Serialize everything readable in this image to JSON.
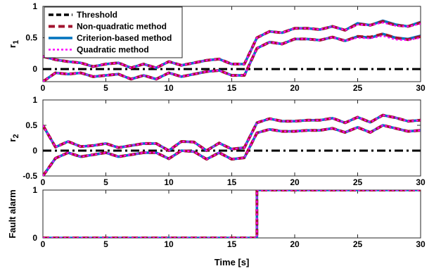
{
  "colors": {
    "threshold": "#000000",
    "non_quadratic": "#a2142f",
    "criterion": "#0072bd",
    "quadratic": "#ff00ff"
  },
  "legend": {
    "placement": "top-left",
    "entries": [
      "Threshold",
      "Non-quadratic method",
      "Criterion-based method",
      "Quadratic method"
    ]
  },
  "chart_data": [
    {
      "type": "line",
      "ylabel": "r",
      "ylabel_sub": "1",
      "xlim": [
        0,
        30
      ],
      "ylim": [
        -0.2,
        1
      ],
      "xticks": [
        0,
        5,
        10,
        15,
        20,
        25,
        30
      ],
      "yticks": [
        0,
        0.5,
        1
      ],
      "ytick_labels": [
        "0",
        "0.5",
        "1"
      ],
      "threshold": 0,
      "series": [
        {
          "name": "Non-quadratic method",
          "style": "upper",
          "x": [
            0,
            1,
            2,
            3,
            4,
            5,
            6,
            7,
            8,
            9,
            10,
            11,
            12,
            13,
            14,
            15,
            16,
            17,
            18,
            19,
            20,
            21,
            22,
            23,
            24,
            25,
            26,
            27,
            28,
            29,
            30
          ],
          "y": [
            0.2,
            0.15,
            0.12,
            0.1,
            0.04,
            0.08,
            0.1,
            0.02,
            0.08,
            0.02,
            0.12,
            0.06,
            0.1,
            0.14,
            0.16,
            0.08,
            0.08,
            0.5,
            0.6,
            0.58,
            0.65,
            0.65,
            0.63,
            0.68,
            0.62,
            0.72,
            0.7,
            0.76,
            0.7,
            0.68,
            0.74
          ]
        },
        {
          "name": "Criterion-based method",
          "style": "upper",
          "x": [
            0,
            1,
            2,
            3,
            4,
            5,
            6,
            7,
            8,
            9,
            10,
            11,
            12,
            13,
            14,
            15,
            16,
            17,
            18,
            19,
            20,
            21,
            22,
            23,
            24,
            25,
            26,
            27,
            28,
            29,
            30
          ],
          "y": [
            0.2,
            0.15,
            0.12,
            0.1,
            0.04,
            0.08,
            0.1,
            0.02,
            0.08,
            0.02,
            0.12,
            0.06,
            0.1,
            0.14,
            0.16,
            0.08,
            0.08,
            0.5,
            0.6,
            0.58,
            0.65,
            0.65,
            0.63,
            0.68,
            0.62,
            0.73,
            0.7,
            0.77,
            0.71,
            0.68,
            0.75
          ]
        },
        {
          "name": "Quadratic method",
          "style": "upper",
          "x": [
            0,
            1,
            2,
            3,
            4,
            5,
            6,
            7,
            8,
            9,
            10,
            11,
            12,
            13,
            14,
            15,
            16,
            17,
            18,
            19,
            20,
            21,
            22,
            23,
            24,
            25,
            26,
            27,
            28,
            29,
            30
          ],
          "y": [
            0.2,
            0.15,
            0.12,
            0.1,
            0.04,
            0.08,
            0.1,
            0.02,
            0.08,
            0.02,
            0.12,
            0.06,
            0.1,
            0.14,
            0.16,
            0.08,
            0.08,
            0.5,
            0.6,
            0.58,
            0.65,
            0.65,
            0.63,
            0.68,
            0.62,
            0.71,
            0.7,
            0.74,
            0.69,
            0.68,
            0.72
          ]
        },
        {
          "name": "Non-quadratic method",
          "style": "lower",
          "x": [
            0,
            1,
            2,
            3,
            4,
            5,
            6,
            7,
            8,
            9,
            10,
            11,
            12,
            13,
            14,
            15,
            16,
            17,
            18,
            19,
            20,
            21,
            22,
            23,
            24,
            25,
            26,
            27,
            28,
            29,
            30
          ],
          "y": [
            -0.2,
            -0.06,
            -0.08,
            -0.06,
            -0.12,
            -0.1,
            -0.08,
            -0.16,
            -0.1,
            -0.16,
            -0.06,
            -0.12,
            -0.08,
            -0.04,
            -0.02,
            -0.1,
            -0.1,
            0.33,
            0.43,
            0.4,
            0.48,
            0.48,
            0.46,
            0.51,
            0.45,
            0.52,
            0.51,
            0.56,
            0.5,
            0.47,
            0.52
          ]
        },
        {
          "name": "Criterion-based method",
          "style": "lower",
          "x": [
            0,
            1,
            2,
            3,
            4,
            5,
            6,
            7,
            8,
            9,
            10,
            11,
            12,
            13,
            14,
            15,
            16,
            17,
            18,
            19,
            20,
            21,
            22,
            23,
            24,
            25,
            26,
            27,
            28,
            29,
            30
          ],
          "y": [
            -0.2,
            -0.06,
            -0.08,
            -0.06,
            -0.12,
            -0.1,
            -0.08,
            -0.16,
            -0.1,
            -0.16,
            -0.06,
            -0.12,
            -0.08,
            -0.04,
            -0.02,
            -0.1,
            -0.1,
            0.33,
            0.43,
            0.4,
            0.48,
            0.48,
            0.46,
            0.51,
            0.45,
            0.52,
            0.5,
            0.56,
            0.5,
            0.48,
            0.53
          ]
        },
        {
          "name": "Quadratic method",
          "style": "lower",
          "x": [
            0,
            1,
            2,
            3,
            4,
            5,
            6,
            7,
            8,
            9,
            10,
            11,
            12,
            13,
            14,
            15,
            16,
            17,
            18,
            19,
            20,
            21,
            22,
            23,
            24,
            25,
            26,
            27,
            28,
            29,
            30
          ],
          "y": [
            -0.2,
            -0.06,
            -0.08,
            -0.06,
            -0.12,
            -0.1,
            -0.08,
            -0.16,
            -0.1,
            -0.16,
            -0.06,
            -0.12,
            -0.08,
            -0.04,
            -0.02,
            -0.1,
            -0.1,
            0.33,
            0.43,
            0.4,
            0.48,
            0.48,
            0.46,
            0.51,
            0.45,
            0.5,
            0.49,
            0.53,
            0.47,
            0.46,
            0.5
          ]
        }
      ]
    },
    {
      "type": "line",
      "ylabel": "r",
      "ylabel_sub": "2",
      "xlim": [
        0,
        30
      ],
      "ylim": [
        -0.5,
        1
      ],
      "xticks": [
        0,
        5,
        10,
        15,
        20,
        25,
        30
      ],
      "yticks": [
        -0.5,
        0,
        0.5,
        1
      ],
      "ytick_labels": [
        "-0.5",
        "0",
        "0.5",
        "1"
      ],
      "threshold": 0,
      "series": [
        {
          "name": "Non-quadratic method",
          "style": "upper",
          "x": [
            0,
            1,
            2,
            3,
            4,
            5,
            6,
            7,
            8,
            9,
            10,
            11,
            12,
            13,
            14,
            15,
            16,
            17,
            18,
            19,
            20,
            21,
            22,
            23,
            24,
            25,
            26,
            27,
            28,
            29,
            30
          ],
          "y": [
            0.5,
            0.07,
            0.18,
            0.08,
            0.1,
            0.14,
            0.06,
            0.1,
            0.14,
            0.14,
            0.0,
            0.18,
            0.17,
            0.0,
            0.15,
            0.03,
            0.06,
            0.55,
            0.63,
            0.58,
            0.58,
            0.6,
            0.6,
            0.64,
            0.55,
            0.66,
            0.56,
            0.7,
            0.65,
            0.58,
            0.6
          ]
        },
        {
          "name": "Criterion-based method",
          "style": "upper",
          "x": [
            0,
            1,
            2,
            3,
            4,
            5,
            6,
            7,
            8,
            9,
            10,
            11,
            12,
            13,
            14,
            15,
            16,
            17,
            18,
            19,
            20,
            21,
            22,
            23,
            24,
            25,
            26,
            27,
            28,
            29,
            30
          ],
          "y": [
            0.5,
            0.07,
            0.18,
            0.08,
            0.1,
            0.14,
            0.06,
            0.1,
            0.14,
            0.14,
            0.0,
            0.18,
            0.17,
            0.0,
            0.15,
            0.03,
            0.06,
            0.55,
            0.63,
            0.58,
            0.58,
            0.6,
            0.6,
            0.64,
            0.55,
            0.66,
            0.56,
            0.7,
            0.65,
            0.58,
            0.6
          ]
        },
        {
          "name": "Quadratic method",
          "style": "upper",
          "x": [
            0,
            1,
            2,
            3,
            4,
            5,
            6,
            7,
            8,
            9,
            10,
            11,
            12,
            13,
            14,
            15,
            16,
            17,
            18,
            19,
            20,
            21,
            22,
            23,
            24,
            25,
            26,
            27,
            28,
            29,
            30
          ],
          "y": [
            0.5,
            0.07,
            0.18,
            0.08,
            0.1,
            0.14,
            0.06,
            0.1,
            0.14,
            0.14,
            0.0,
            0.18,
            0.17,
            0.0,
            0.15,
            0.03,
            0.06,
            0.55,
            0.63,
            0.58,
            0.58,
            0.6,
            0.6,
            0.64,
            0.55,
            0.66,
            0.56,
            0.7,
            0.65,
            0.58,
            0.6
          ]
        },
        {
          "name": "Non-quadratic method",
          "style": "lower",
          "x": [
            0,
            1,
            2,
            3,
            4,
            5,
            6,
            7,
            8,
            9,
            10,
            11,
            12,
            13,
            14,
            15,
            16,
            17,
            18,
            19,
            20,
            21,
            22,
            23,
            24,
            25,
            26,
            27,
            28,
            29,
            30
          ],
          "y": [
            -0.5,
            -0.15,
            -0.04,
            -0.12,
            -0.08,
            -0.04,
            -0.12,
            -0.08,
            -0.04,
            -0.04,
            -0.16,
            0.0,
            -0.02,
            -0.17,
            -0.04,
            -0.17,
            -0.14,
            0.35,
            0.42,
            0.38,
            0.38,
            0.4,
            0.4,
            0.44,
            0.36,
            0.46,
            0.36,
            0.5,
            0.44,
            0.38,
            0.4
          ]
        },
        {
          "name": "Criterion-based method",
          "style": "lower",
          "x": [
            0,
            1,
            2,
            3,
            4,
            5,
            6,
            7,
            8,
            9,
            10,
            11,
            12,
            13,
            14,
            15,
            16,
            17,
            18,
            19,
            20,
            21,
            22,
            23,
            24,
            25,
            26,
            27,
            28,
            29,
            30
          ],
          "y": [
            -0.5,
            -0.15,
            -0.04,
            -0.12,
            -0.08,
            -0.04,
            -0.12,
            -0.08,
            -0.04,
            -0.04,
            -0.16,
            0.0,
            -0.02,
            -0.17,
            -0.04,
            -0.17,
            -0.14,
            0.35,
            0.42,
            0.38,
            0.38,
            0.4,
            0.4,
            0.44,
            0.36,
            0.46,
            0.36,
            0.5,
            0.44,
            0.38,
            0.4
          ]
        },
        {
          "name": "Quadratic method",
          "style": "lower",
          "x": [
            0,
            1,
            2,
            3,
            4,
            5,
            6,
            7,
            8,
            9,
            10,
            11,
            12,
            13,
            14,
            15,
            16,
            17,
            18,
            19,
            20,
            21,
            22,
            23,
            24,
            25,
            26,
            27,
            28,
            29,
            30
          ],
          "y": [
            -0.5,
            -0.15,
            -0.04,
            -0.12,
            -0.08,
            -0.04,
            -0.12,
            -0.08,
            -0.04,
            -0.04,
            -0.16,
            0.0,
            -0.02,
            -0.17,
            -0.04,
            -0.17,
            -0.14,
            0.35,
            0.42,
            0.38,
            0.38,
            0.4,
            0.4,
            0.44,
            0.36,
            0.46,
            0.36,
            0.5,
            0.44,
            0.38,
            0.4
          ]
        }
      ]
    },
    {
      "type": "line",
      "ylabel": "Fault alarm",
      "xlabel": "Time [s]",
      "xlim": [
        0,
        30
      ],
      "ylim": [
        0,
        1
      ],
      "xticks": [
        0,
        5,
        10,
        15,
        20,
        25,
        30
      ],
      "yticks": [
        0,
        1
      ],
      "ytick_labels": [
        "0",
        "1"
      ],
      "series": [
        {
          "name": "Non-quadratic method",
          "style": "step",
          "x": [
            0,
            17,
            17,
            30
          ],
          "y": [
            0,
            0,
            1,
            1
          ]
        },
        {
          "name": "Criterion-based method",
          "style": "step",
          "x": [
            0,
            17,
            17,
            30
          ],
          "y": [
            0,
            0,
            1,
            1
          ]
        },
        {
          "name": "Quadratic method",
          "style": "step",
          "x": [
            0,
            17,
            17,
            30
          ],
          "y": [
            0,
            0,
            1,
            1
          ]
        }
      ]
    }
  ]
}
